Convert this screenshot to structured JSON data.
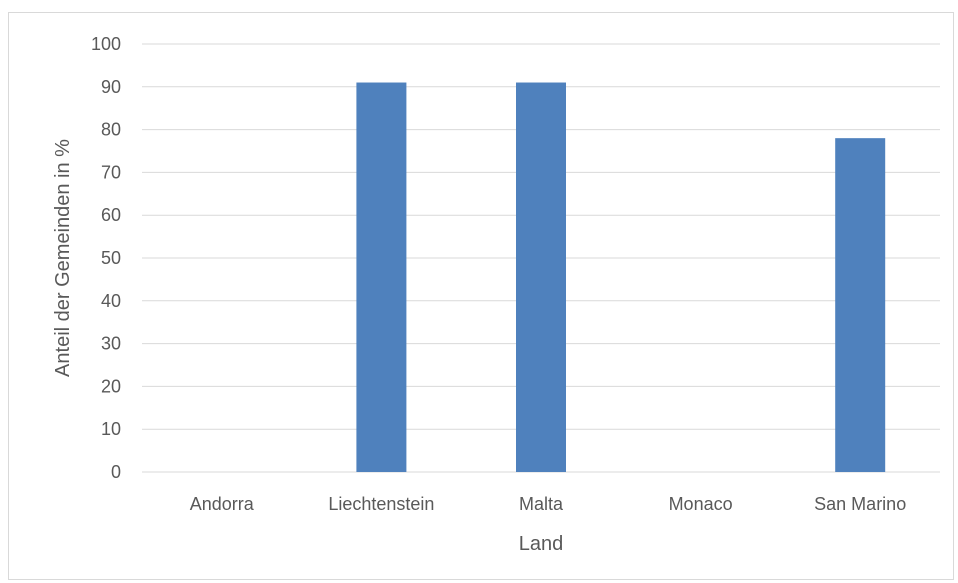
{
  "chart_data": {
    "type": "bar",
    "title": "",
    "xlabel": "Land",
    "ylabel": "Anteil der Gemeinden in %",
    "categories": [
      "Andorra",
      "Liechtenstein",
      "Malta",
      "Monaco",
      "San Marino"
    ],
    "values": [
      0,
      91,
      91,
      0,
      78
    ],
    "ylim": [
      0,
      100
    ],
    "yticks": [
      0,
      10,
      20,
      30,
      40,
      50,
      60,
      70,
      80,
      90,
      100
    ],
    "grid": true,
    "legend": "none",
    "colors": {
      "bar": "#4f81bd",
      "grid": "#d9d9d9",
      "text": "#595959"
    }
  }
}
